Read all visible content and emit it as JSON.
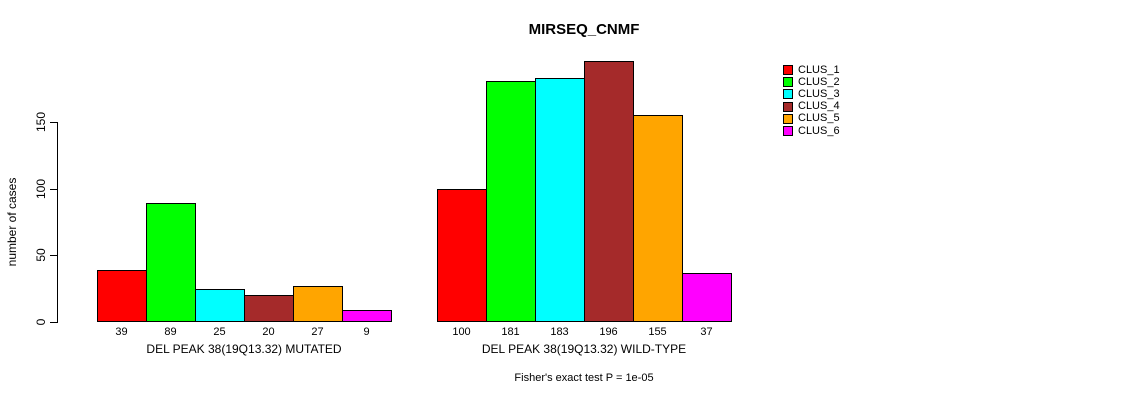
{
  "chart_data": {
    "type": "bar",
    "title": "MIRSEQ_CNMF",
    "ylabel": "number of cases",
    "xlabel": "",
    "yticks": [
      0,
      50,
      100,
      150
    ],
    "ylim": [
      0,
      196
    ],
    "grid": false,
    "legend_position": "right",
    "clusters": [
      "CLUS_1",
      "CLUS_2",
      "CLUS_3",
      "CLUS_4",
      "CLUS_5",
      "CLUS_6"
    ],
    "colors": [
      "#FF0000",
      "#00FF00",
      "#00FFFF",
      "#A52A2A",
      "#FFA500",
      "#FF00FF"
    ],
    "groups": [
      {
        "label": "DEL PEAK 38(19Q13.32) MUTATED",
        "values": [
          39,
          89,
          25,
          20,
          27,
          9
        ]
      },
      {
        "label": "DEL PEAK 38(19Q13.32) WILD-TYPE",
        "values": [
          100,
          181,
          183,
          196,
          155,
          37
        ]
      }
    ],
    "annotation": "Fisher's exact test P = 1e-05"
  }
}
